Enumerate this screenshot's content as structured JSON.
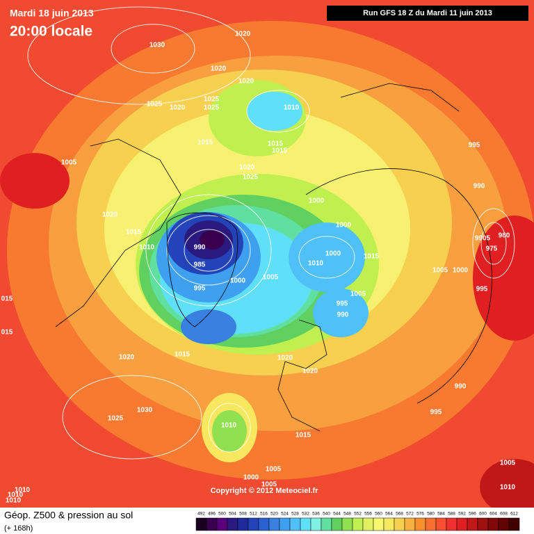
{
  "header": {
    "date": "Mardi 18 juin 2013",
    "time": "20:00 locale",
    "run": "Run GFS 18 Z du Mardi 11 juin 2013"
  },
  "copyright": "Copyright © 2012 Meteociel.fr",
  "legend": {
    "title": "Géop. Z500 & pression au sol",
    "subtitle": "(+ 168h)",
    "scale": [
      492,
      496,
      500,
      504,
      508,
      512,
      516,
      520,
      524,
      528,
      532,
      536,
      540,
      544,
      548,
      552,
      556,
      560,
      564,
      568,
      572,
      576,
      580,
      584,
      588,
      592,
      596,
      600,
      604,
      608,
      612
    ],
    "colors": [
      "#1a0020",
      "#3a0050",
      "#5a007a",
      "#2a1a80",
      "#1e2a9a",
      "#2244b8",
      "#2a60d0",
      "#3a80e0",
      "#40a0f0",
      "#50c0f8",
      "#60e0f8",
      "#80f0e0",
      "#60e0a0",
      "#60d060",
      "#90e050",
      "#c0f050",
      "#e0f060",
      "#f8f870",
      "#f8e860",
      "#f8d050",
      "#f8b040",
      "#f89030",
      "#f87030",
      "#f85030",
      "#f03030",
      "#e02020",
      "#c01818",
      "#a01010",
      "#800808",
      "#600404",
      "#400000"
    ]
  },
  "isobar_labels": [
    "1020",
    "1030",
    "1020",
    "1020",
    "1025",
    "1020",
    "1025",
    "1025",
    "1010",
    "1015",
    "1015",
    "1015",
    "1005",
    "995",
    "1020",
    "1025",
    "990",
    "1000",
    "1020",
    "1015",
    "1000",
    "1010",
    "990",
    "9905",
    "980",
    "975",
    "1000",
    "1015",
    "1010",
    "985",
    "1000",
    "1005",
    "1005",
    "1000",
    "995",
    "995",
    "1005",
    "995",
    "990",
    "015",
    "015",
    "1020",
    "1015",
    "1020",
    "1020",
    "990",
    "995",
    "1025",
    "1030",
    "1010",
    "1015",
    "1005",
    "1005",
    "1000",
    "1005",
    "1010",
    "1010",
    "1010",
    "1010"
  ]
}
